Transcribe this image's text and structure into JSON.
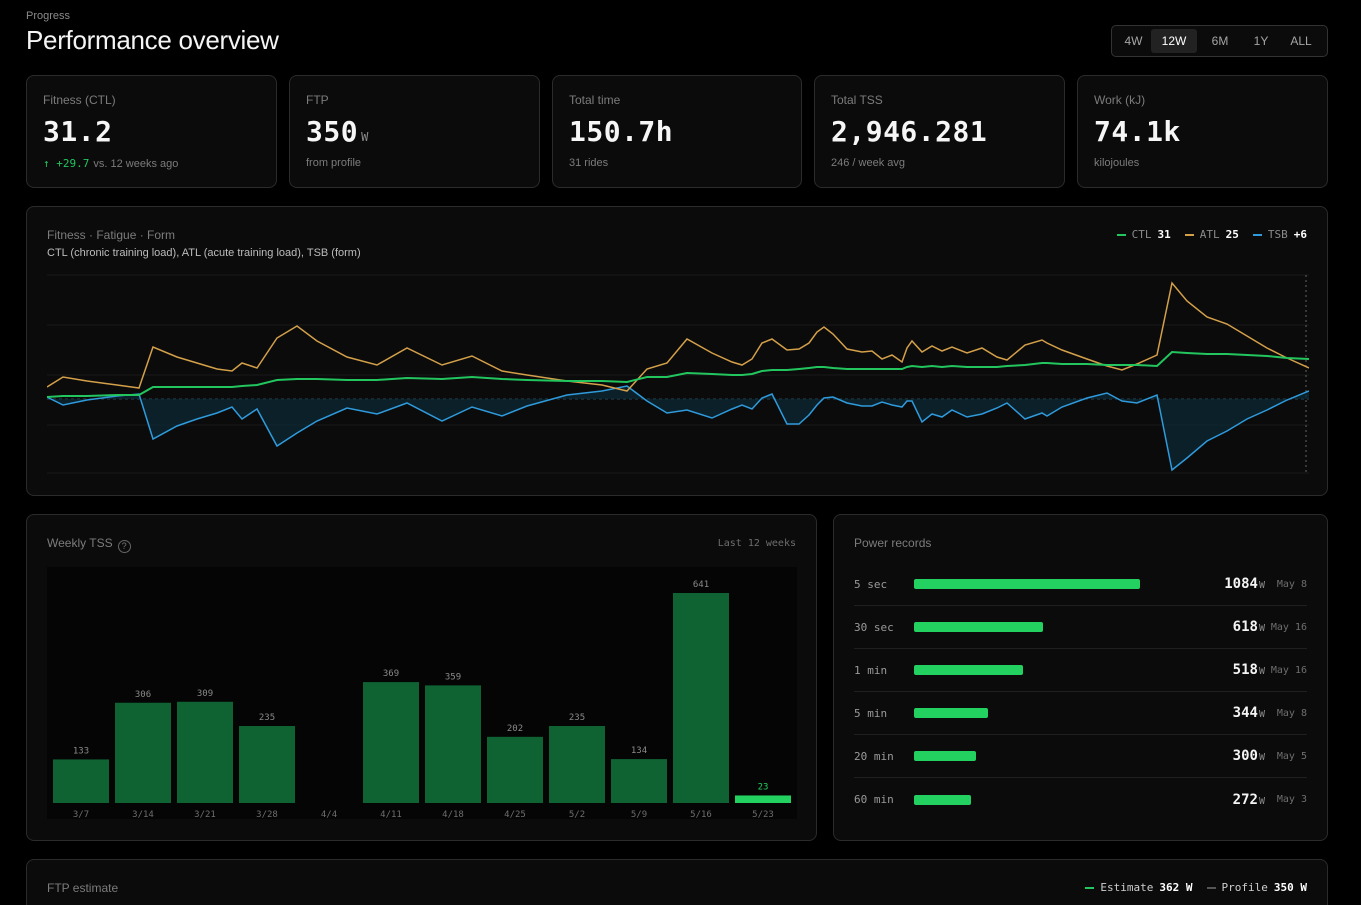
{
  "header": {
    "eyebrow": "Progress",
    "title": "Performance overview",
    "ranges": [
      "4W",
      "12W",
      "6M",
      "1Y",
      "ALL"
    ],
    "active_range": "12W"
  },
  "stats": [
    {
      "label": "Fitness (CTL)",
      "value": "31.2",
      "unit": "",
      "delta": "↑ +29.7",
      "sub": "vs. 12 weeks ago"
    },
    {
      "label": "FTP",
      "value": "350",
      "unit": "W",
      "delta": "",
      "sub": "from profile"
    },
    {
      "label": "Total time",
      "value": "150.7h",
      "unit": "",
      "delta": "",
      "sub": "31 rides"
    },
    {
      "label": "Total TSS",
      "value": "2,946.281",
      "unit": "",
      "delta": "",
      "sub": "246 / week avg"
    },
    {
      "label": "Work (kJ)",
      "value": "74.1k",
      "unit": "",
      "delta": "",
      "sub": "kilojoules"
    }
  ],
  "pmc": {
    "title": "Fitness · Fatigue · Form",
    "subtitle": "CTL (chronic training load), ATL (acute training load), TSB (form)",
    "legend": [
      {
        "name": "CTL",
        "value": "31",
        "color": "#22c55e"
      },
      {
        "name": "ATL",
        "value": "25",
        "color": "#d4a04a"
      },
      {
        "name": "TSB",
        "value": "+6",
        "color": "#2f9bdc"
      }
    ]
  },
  "weekly_tss": {
    "title": "Weekly TSS",
    "help_icon": "question-circle-icon",
    "period": "Last 12 weeks"
  },
  "chart_data": {
    "type": "bar",
    "categories": [
      "3/7",
      "3/14",
      "3/21",
      "3/28",
      "4/4",
      "4/11",
      "4/18",
      "4/25",
      "5/2",
      "5/9",
      "5/16",
      "5/23"
    ],
    "values": [
      133,
      306,
      309,
      235,
      0,
      369,
      359,
      202,
      235,
      134,
      641,
      23
    ],
    "value_labels": [
      "133",
      "306",
      "309",
      "235",
      "",
      "369",
      "359",
      "202",
      "235",
      "134",
      "641",
      "23"
    ],
    "ylim": [
      0,
      641
    ],
    "colors": {
      "bar": "#0f6333",
      "current": "#22d160"
    }
  },
  "power_records": {
    "title": "Power records",
    "unit": "W",
    "rows": [
      {
        "label": "5 sec",
        "value": "1084",
        "date": "May 8",
        "fraction": 0.58
      },
      {
        "label": "30 sec",
        "value": "618",
        "date": "May 16",
        "fraction": 0.33
      },
      {
        "label": "1 min",
        "value": "518",
        "date": "May 16",
        "fraction": 0.28
      },
      {
        "label": "5 min",
        "value": "344",
        "date": "May 8",
        "fraction": 0.19
      },
      {
        "label": "20 min",
        "value": "300",
        "date": "May 5",
        "fraction": 0.16
      },
      {
        "label": "60 min",
        "value": "272",
        "date": "May 3",
        "fraction": 0.146
      }
    ]
  },
  "ftp_estimate": {
    "title": "FTP estimate",
    "legend": [
      {
        "name": "Estimate",
        "value": "362 W",
        "color": "#22c55e"
      },
      {
        "name": "Profile",
        "value": "350 W",
        "color": "#555555"
      }
    ]
  }
}
